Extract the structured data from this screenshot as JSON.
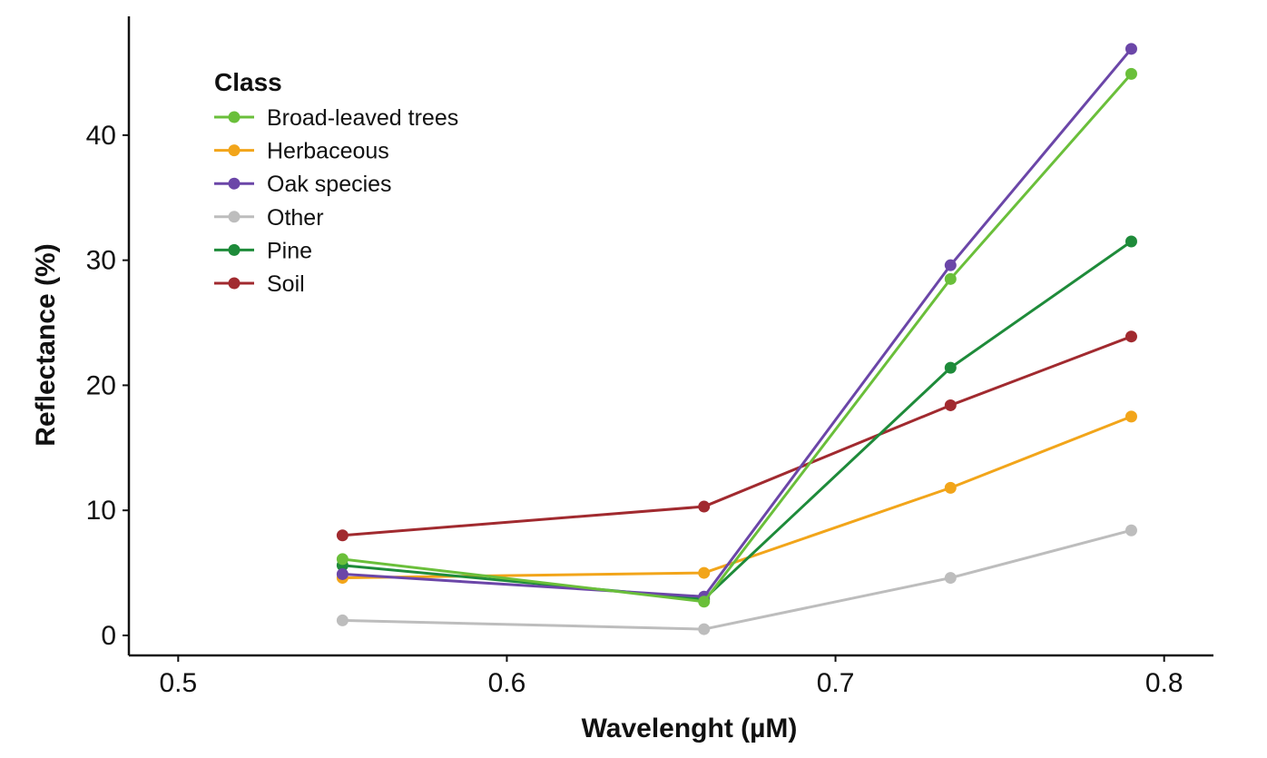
{
  "chart_data": {
    "type": "line",
    "title": "",
    "xlabel": "Wavelenght (µM)",
    "ylabel": "Reflectance (%)",
    "xlim": [
      0.485,
      0.815
    ],
    "ylim": [
      -1.6,
      49.5
    ],
    "xticks": [
      0.5,
      0.6,
      0.7,
      0.8
    ],
    "xtick_labels": [
      "0.5",
      "0.6",
      "0.7",
      "0.8"
    ],
    "yticks": [
      0,
      10,
      20,
      30,
      40
    ],
    "ytick_labels": [
      "0",
      "10",
      "20",
      "30",
      "40"
    ],
    "grid": false,
    "legend_title": "Class",
    "legend_position": "top-left",
    "x": [
      0.55,
      0.66,
      0.735,
      0.79
    ],
    "series": [
      {
        "name": "Soil",
        "color": "#a12a2f",
        "values": [
          8.0,
          10.3,
          18.4,
          23.9
        ]
      },
      {
        "name": "Other",
        "color": "#bdbdbd",
        "values": [
          1.2,
          0.5,
          4.6,
          8.4
        ]
      },
      {
        "name": "Herbaceous",
        "color": "#f2a51a",
        "values": [
          4.6,
          5.0,
          11.8,
          17.5
        ]
      },
      {
        "name": "Pine",
        "color": "#1e8b3a",
        "values": [
          5.6,
          2.9,
          21.4,
          31.5
        ]
      },
      {
        "name": "Oak species",
        "color": "#6b46a8",
        "values": [
          4.9,
          3.1,
          29.6,
          46.9
        ]
      },
      {
        "name": "Broad-leaved trees",
        "color": "#6abf3a",
        "values": [
          6.1,
          2.7,
          28.5,
          44.9
        ]
      }
    ],
    "legend_order": [
      "Broad-leaved trees",
      "Herbaceous",
      "Oak species",
      "Other",
      "Pine",
      "Soil"
    ]
  }
}
